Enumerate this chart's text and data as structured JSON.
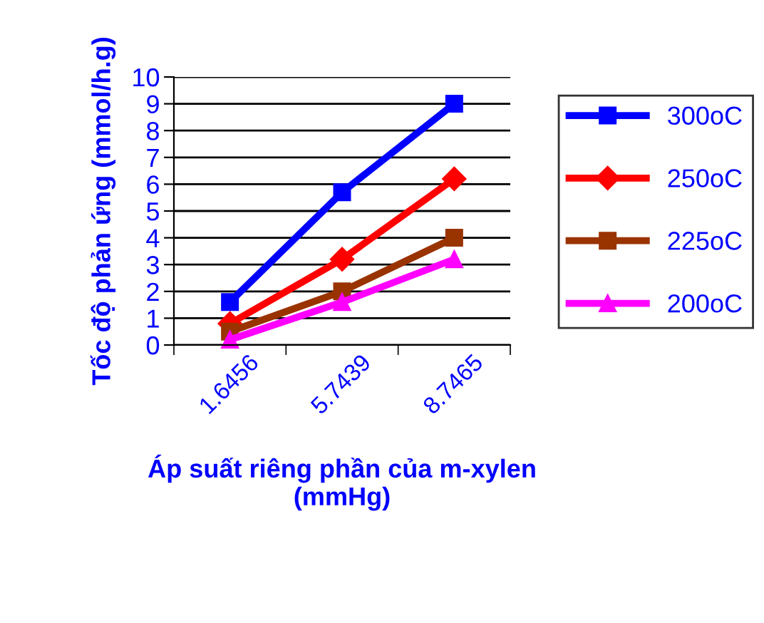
{
  "chart_data": {
    "type": "line",
    "xlabel": "Áp suất riêng phần của m-xylen\n(mmHg)",
    "ylabel": "Tốc độ phản ứng (mmol/h.g)",
    "categories": [
      "1.6456",
      "5.7439",
      "8.7465"
    ],
    "series": [
      {
        "name": "300oC",
        "color": "#0000ff",
        "marker": "square",
        "values": [
          1.6,
          5.7,
          9.0
        ]
      },
      {
        "name": "250oC",
        "color": "#ff0000",
        "marker": "diamond",
        "values": [
          0.8,
          3.2,
          6.2
        ]
      },
      {
        "name": "225oC",
        "color": "#993300",
        "marker": "square",
        "values": [
          0.5,
          2.0,
          4.0
        ]
      },
      {
        "name": "200oC",
        "color": "#ff00ff",
        "marker": "triangle",
        "values": [
          0.2,
          1.6,
          3.2
        ]
      }
    ],
    "ylim": [
      0,
      10
    ],
    "yticks": [
      0,
      1,
      2,
      3,
      4,
      5,
      6,
      7,
      8,
      9,
      10
    ],
    "grid": "y",
    "legend": "right",
    "line_style": "solid"
  }
}
